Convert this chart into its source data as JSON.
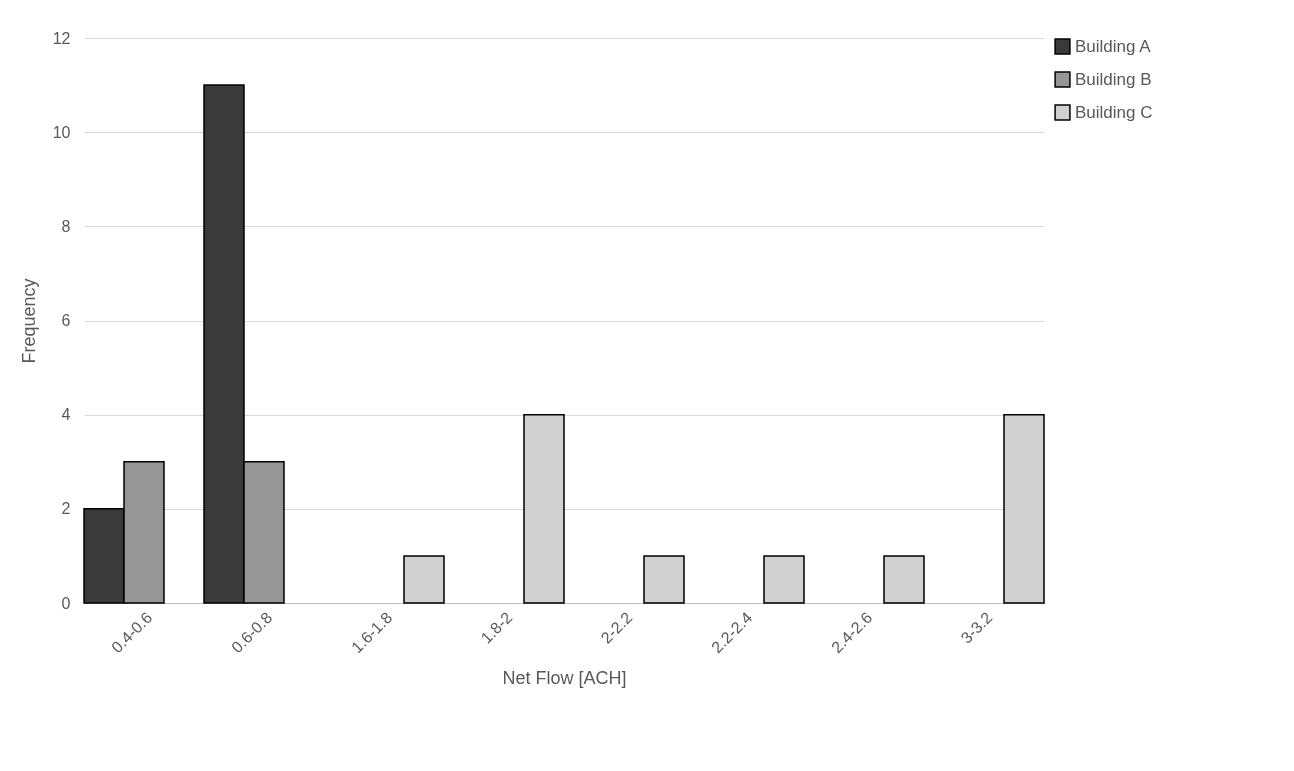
{
  "chart_data": {
    "type": "bar",
    "xlabel": "Net Flow [ACH]",
    "ylabel": "Frequency",
    "categories": [
      "0.4-0.6",
      "0.6-0.8",
      "1.6-1.8",
      "1.8-2",
      "2-2.2",
      "2.2-2.4",
      "2.4-2.6",
      "3-3.2"
    ],
    "series": [
      {
        "name": "Building A",
        "color": "#3a3a3a",
        "values": [
          2,
          11,
          null,
          null,
          null,
          null,
          null,
          null
        ]
      },
      {
        "name": "Building B",
        "color": "#969696",
        "values": [
          3,
          3,
          null,
          null,
          null,
          null,
          null,
          null
        ]
      },
      {
        "name": "Building C",
        "color": "#d0d0d0",
        "values": [
          null,
          null,
          1,
          4,
          1,
          1,
          1,
          4
        ]
      }
    ],
    "ylim": [
      0,
      12
    ],
    "yticks": [
      0,
      2,
      4,
      6,
      8,
      10,
      12
    ],
    "grid": "y",
    "legend": "right"
  }
}
